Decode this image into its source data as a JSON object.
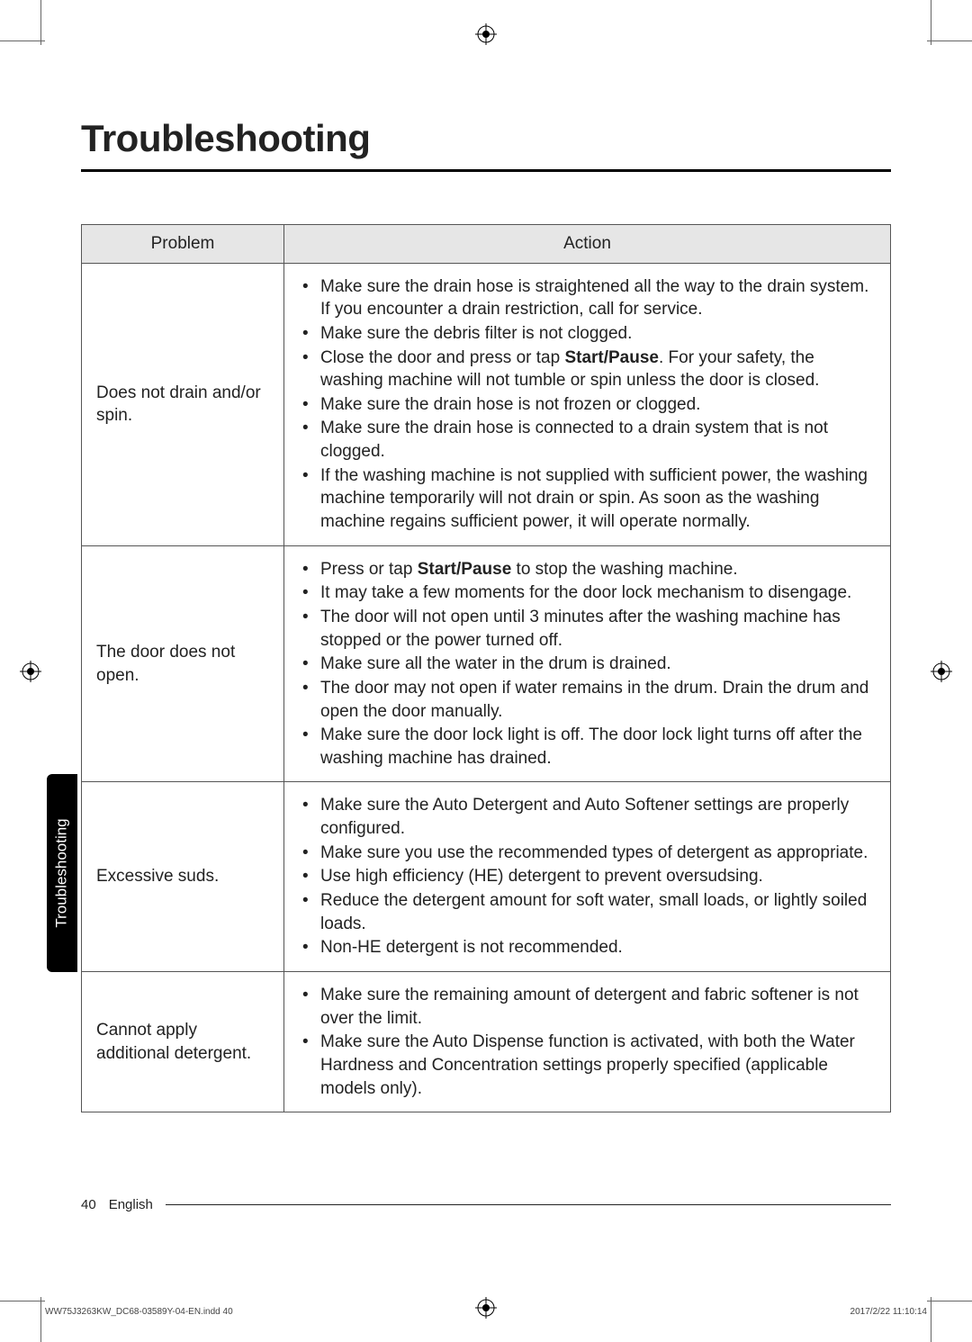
{
  "title": "Troubleshooting",
  "headers": {
    "problem": "Problem",
    "action": "Action"
  },
  "rows": [
    {
      "problem": "Does not drain and/or spin.",
      "actions": [
        {
          "pre": "Make sure the drain hose is straightened all the way to the drain system. If you encounter a drain restriction, call for service."
        },
        {
          "pre": "Make sure the debris filter is not clogged."
        },
        {
          "pre": "Close the door and press or tap ",
          "bold": "Start/Pause",
          "post": ". For your safety, the washing machine will not tumble or spin unless the door is closed."
        },
        {
          "pre": "Make sure the drain hose is not frozen or clogged."
        },
        {
          "pre": "Make sure the drain hose is connected to a drain system that is not clogged."
        },
        {
          "pre": "If the washing machine is not supplied with sufficient power, the washing machine temporarily will not drain or spin. As soon as the washing machine regains sufficient power, it will operate normally."
        }
      ]
    },
    {
      "problem": "The door does not open.",
      "actions": [
        {
          "pre": "Press or tap ",
          "bold": "Start/Pause",
          "post": " to stop the washing machine."
        },
        {
          "pre": "It may take a few moments for the door lock mechanism to disengage."
        },
        {
          "pre": "The door will not open until 3 minutes after the washing machine has stopped or the power turned off."
        },
        {
          "pre": "Make sure all the water in the drum is drained."
        },
        {
          "pre": "The door may not open if water remains in the drum. Drain the drum and open the door manually."
        },
        {
          "pre": "Make sure the door lock light is off. The door lock light turns off after the washing machine has drained."
        }
      ]
    },
    {
      "problem": "Excessive suds.",
      "actions": [
        {
          "pre": "Make sure the Auto Detergent and Auto Softener settings are properly configured."
        },
        {
          "pre": "Make sure you use the recommended types of detergent as appropriate."
        },
        {
          "pre": "Use high efficiency (HE) detergent to prevent oversudsing."
        },
        {
          "pre": "Reduce the detergent amount for soft water, small loads, or lightly soiled loads."
        },
        {
          "pre": "Non-HE detergent is not recommended."
        }
      ]
    },
    {
      "problem": "Cannot apply additional detergent.",
      "actions": [
        {
          "pre": "Make sure the remaining amount of detergent and fabric softener is not over the limit."
        },
        {
          "pre": "Make sure the Auto Dispense function is activated, with both the Water Hardness and Concentration settings properly specified (applicable models only)."
        }
      ]
    }
  ],
  "side_tab": "Troubleshooting",
  "footer": {
    "page": "40",
    "lang": "English"
  },
  "print": {
    "left": "WW75J3263KW_DC68-03589Y-04-EN.indd   40",
    "right": "2017/2/22   11:10:14"
  }
}
